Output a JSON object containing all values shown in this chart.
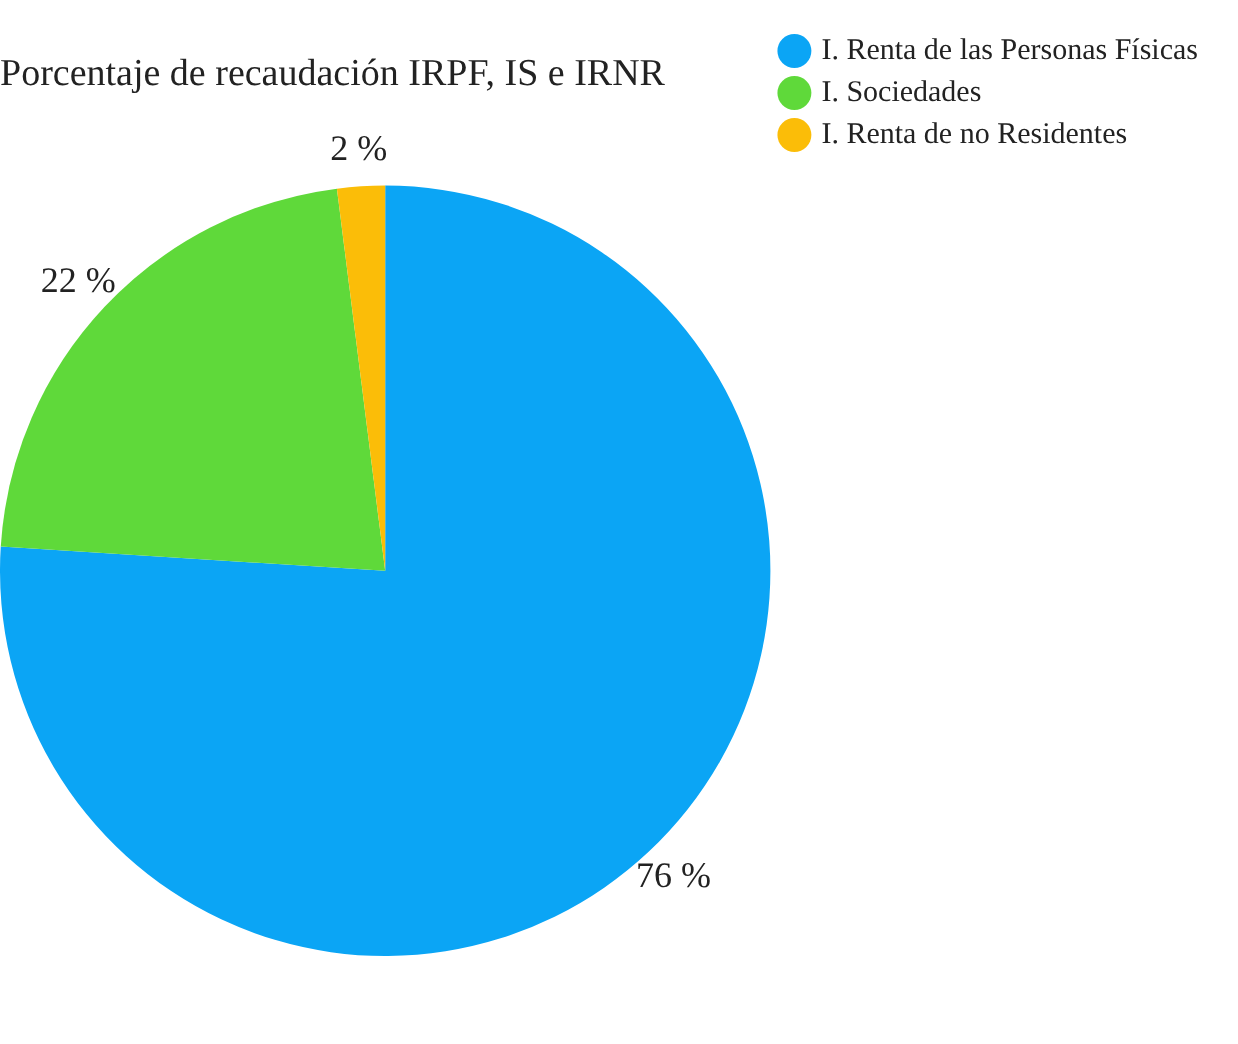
{
  "chart_data": {
    "type": "pie",
    "title": "Porcentaje de recaudación IRPF, IS e IRNR",
    "categories": [
      "I. Renta de las Personas Físicas",
      "I. Sociedades",
      "I. Renta de no Residentes"
    ],
    "values": [
      76,
      22,
      2
    ],
    "colors": [
      "#0ba5f5",
      "#5fd93a",
      "#fbbd08"
    ],
    "value_labels": [
      "76 %",
      "22 %",
      "2 %"
    ],
    "legend": "top right"
  }
}
